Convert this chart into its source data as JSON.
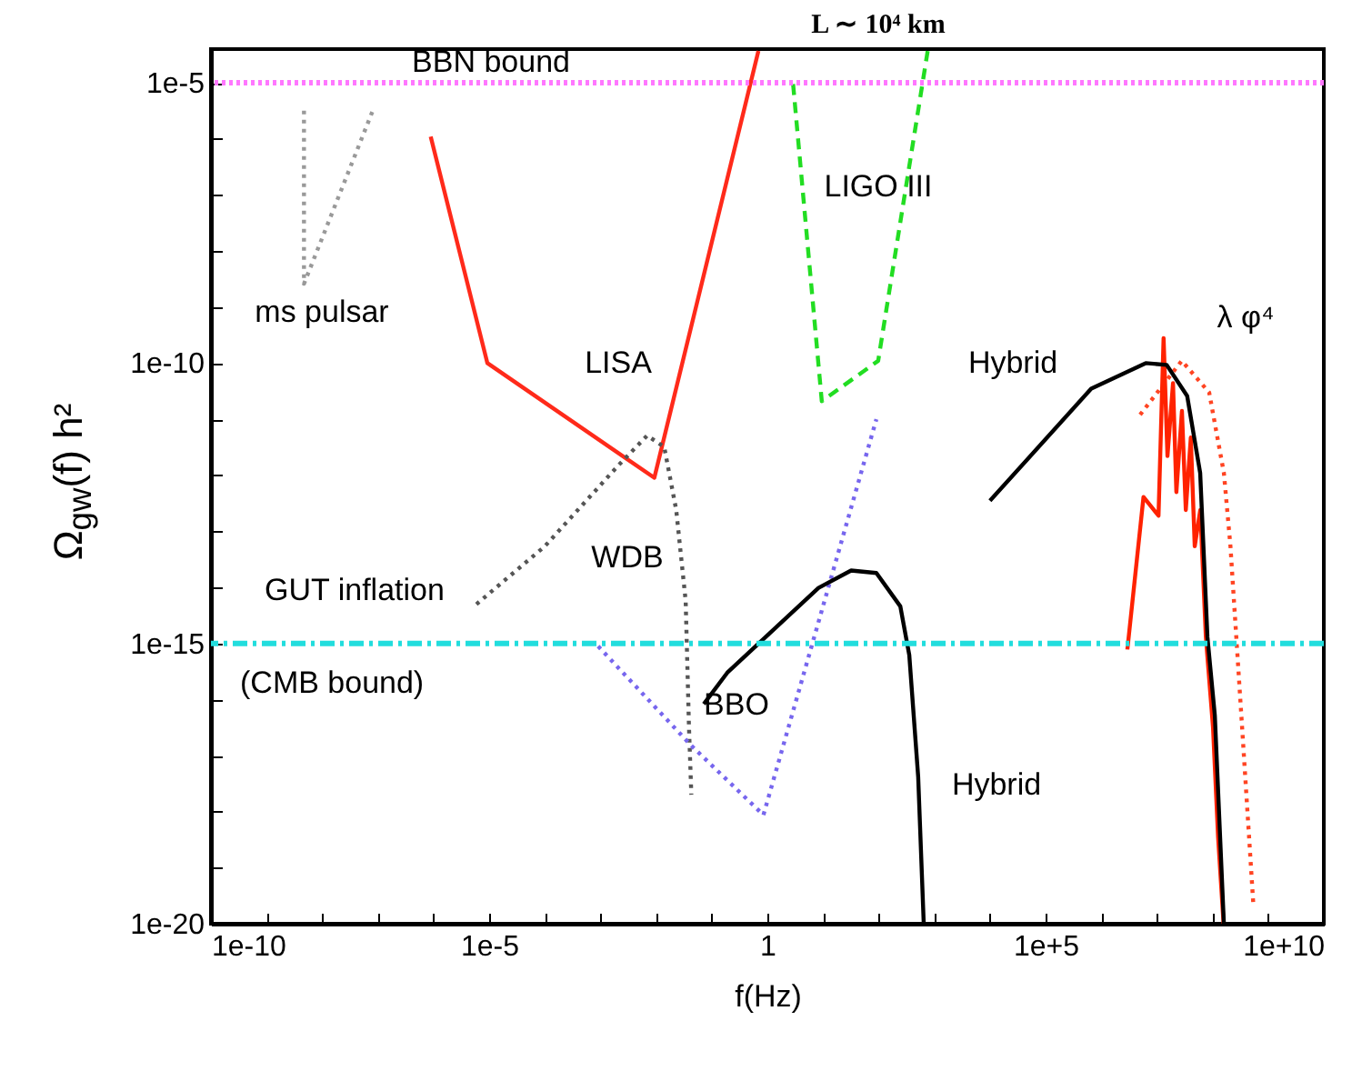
{
  "chart_data": {
    "type": "line",
    "xlabel": "f(Hz)",
    "ylabel": "Ω$_{gw}$(f) h²",
    "log": "xy",
    "grid": false,
    "xlim": [
      1e-10,
      10000000000.0
    ],
    "ylim": [
      1e-20,
      4e-05
    ],
    "xticks": [
      {
        "value": 1e-10,
        "label": "1e-10"
      },
      {
        "value": 1e-09,
        "label": null
      },
      {
        "value": 1e-08,
        "label": null
      },
      {
        "value": 1e-07,
        "label": null
      },
      {
        "value": 1e-06,
        "label": null
      },
      {
        "value": 1e-05,
        "label": "1e-5"
      },
      {
        "value": 0.0001,
        "label": null
      },
      {
        "value": 0.001,
        "label": null
      },
      {
        "value": 0.01,
        "label": null
      },
      {
        "value": 0.1,
        "label": null
      },
      1,
      {
        "value": 10,
        "label": null
      },
      {
        "value": 100,
        "label": null
      },
      {
        "value": 1000,
        "label": null
      },
      {
        "value": 10000.0,
        "label": null
      },
      {
        "value": 100000.0,
        "label": "1e+5"
      },
      {
        "value": 1000000.0,
        "label": null
      },
      {
        "value": 10000000.0,
        "label": null
      },
      {
        "value": 100000000.0,
        "label": null
      },
      {
        "value": 1000000000.0,
        "label": null
      },
      {
        "value": 10000000000.0,
        "label": "1e+10"
      }
    ],
    "yticks": [
      {
        "value": 1e-20,
        "label": "1e-20"
      },
      {
        "value": 1e-19,
        "label": null
      },
      {
        "value": 1e-18,
        "label": null
      },
      {
        "value": 1e-17,
        "label": null
      },
      {
        "value": 1e-16,
        "label": null
      },
      {
        "value": 1e-15,
        "label": "1e-15"
      },
      {
        "value": 1e-14,
        "label": null
      },
      {
        "value": 1e-13,
        "label": null
      },
      {
        "value": 1e-12,
        "label": null
      },
      {
        "value": 1e-11,
        "label": null
      },
      {
        "value": 1e-10,
        "label": "1e-10"
      },
      {
        "value": 1e-09,
        "label": null
      },
      {
        "value": 1e-08,
        "label": null
      },
      {
        "value": 1e-07,
        "label": null
      },
      {
        "value": 1e-06,
        "label": null
      },
      {
        "value": 1e-05,
        "label": "1e-5"
      }
    ],
    "series": [
      {
        "color": "#999999",
        "line_style": "dotted",
        "x": [
          4.7e-09,
          4.7e-09,
          8.1e-08
        ],
        "values": [
          3.2e-06,
          2.6e-09,
          3.2e-06
        ]
      },
      {
        "color": "#ff2a1a",
        "line_style": "solid",
        "x": [
          8.9e-07,
          9.3e-06,
          0.0093,
          0.69
        ],
        "values": [
          1.1e-06,
          1e-10,
          9e-13,
          3.7e-05
        ]
      },
      {
        "color": "#555555",
        "line_style": "dotted",
        "x": [
          5.9e-06,
          0.0001,
          0.0021,
          0.0069,
          0.014,
          0.023,
          0.034,
          0.039,
          0.043
        ],
        "values": [
          5e-15,
          5.4e-14,
          1.5e-12,
          5.1e-12,
          3.2e-12,
          2.4e-13,
          5.8e-15,
          3.2e-17,
          2e-18
        ]
      },
      {
        "color": "#7766ee",
        "line_style": "dotted",
        "x": [
          0.00091,
          0.043,
          0.85,
          91
        ],
        "values": [
          8.9e-16,
          1.5e-17,
          8.7e-19,
          1e-11
        ]
      },
      {
        "color": "#22dd22",
        "line_style": "dashed",
        "x": [
          2.9,
          9.5,
          98,
          760
        ],
        "values": [
          9.5e-06,
          2.1e-11,
          1.1e-10,
          3.7e-05
        ]
      },
      {
        "color": "#000000",
        "line_style": "solid",
        "x": [
          0.072,
          0.19,
          8.3,
          32,
          91,
          245,
          355,
          513,
          646
        ],
        "values": [
          8.3e-17,
          3e-16,
          9.8e-15,
          2e-14,
          1.8e-14,
          4.6e-15,
          6.2e-16,
          4.2e-18,
          1e-20
        ]
      },
      {
        "color": "#ff4422",
        "line_style": "dotted",
        "x": [
          5000000.0,
          28000000.0,
          87000000.0,
          160000000.0,
          210000000.0,
          340000000.0,
          540000000.0
        ],
        "values": [
          1.2e-11,
          1.1e-10,
          3e-11,
          1.1e-12,
          5.4e-14,
          3.2e-17,
          2.3e-20
        ]
      },
      {
        "color": "#ff2200",
        "line_style": "solid",
        "x": [
          2950000.0,
          5750000.0,
          10700000.0,
          13200000.0,
          15500000.0,
          19500000.0,
          22400000.0,
          28200000.0,
          33100000.0,
          40700000.0,
          47900000.0,
          60300000.0,
          75900000.0,
          102000000.0,
          126000000.0,
          158000000.0
        ],
        "values": [
          7.8e-16,
          4.1e-13,
          1.9e-13,
          2.8e-10,
          2.2e-12,
          4.4e-11,
          5e-13,
          1.4e-11,
          2.4e-13,
          4.7e-12,
          5.4e-14,
          2.4e-13,
          1.3e-15,
          3.2e-17,
          3.5e-19,
          1e-20
        ]
      },
      {
        "color": "#000000",
        "line_style": "solid",
        "x": [
          10000.0,
          660000.0,
          6300000.0,
          15000000.0,
          35000000.0,
          60000000.0,
          81000000.0,
          110000000.0,
          160000000.0
        ],
        "values": [
          3.5e-13,
          3.5e-11,
          1e-10,
          9.3e-11,
          2.6e-11,
          1.1e-12,
          1.3e-15,
          5.2e-17,
          1e-20
        ]
      }
    ],
    "ref_lines": [
      {
        "axis": "y",
        "value": 1e-05,
        "label": "BBN bound",
        "color": "#ff77ff",
        "line_style": "dotted"
      },
      {
        "axis": "y",
        "value": 1e-15,
        "label": "(CMB bound)",
        "color": "#22dddd",
        "line_style": "dashed"
      }
    ],
    "annotations": [
      "L ∼ 10⁴ km",
      "ms pulsar",
      "LISA",
      "LIGO III",
      "GUT inflation",
      "WDB",
      "BBO",
      "Hybrid",
      "Hybrid",
      "λ φ⁴"
    ]
  }
}
